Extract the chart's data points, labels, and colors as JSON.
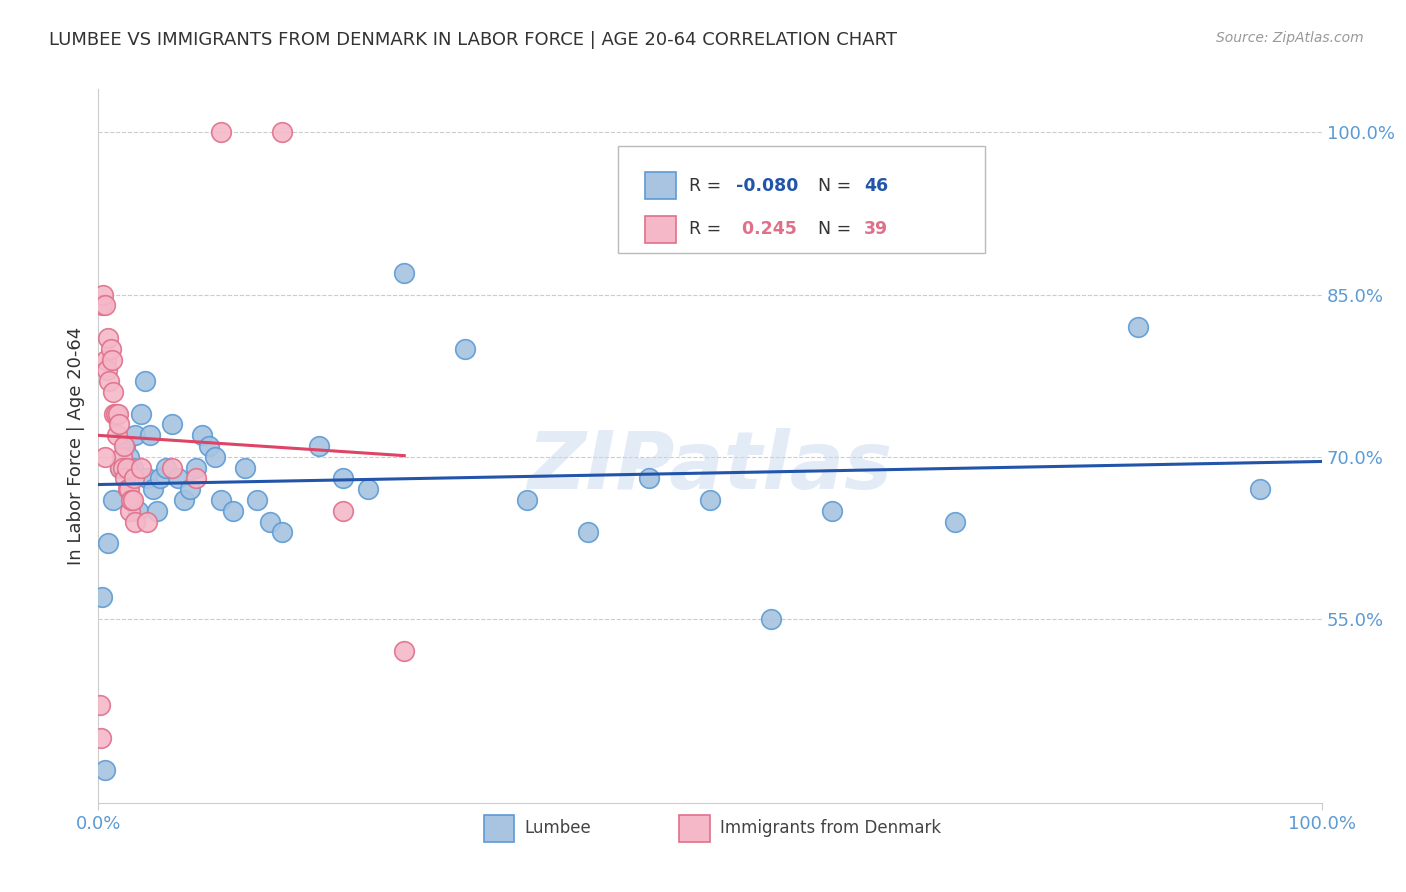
{
  "title": "LUMBEE VS IMMIGRANTS FROM DENMARK IN LABOR FORCE | AGE 20-64 CORRELATION CHART",
  "source": "Source: ZipAtlas.com",
  "ylabel": "In Labor Force | Age 20-64",
  "watermark": "ZIPatlas",
  "lumbee_color": "#a8c4e0",
  "lumbee_edge": "#5b9bd5",
  "denmark_color": "#f4b8c8",
  "denmark_edge": "#e0708a",
  "line_lumbee": "#2255aa",
  "line_denmark": "#dd4466",
  "tick_color": "#5b9bd5",
  "grid_color": "#cccccc",
  "title_color": "#333333",
  "source_color": "#999999",
  "xlim": [
    0.0,
    1.0
  ],
  "ylim": [
    0.38,
    1.04
  ],
  "yticks": [
    0.55,
    0.7,
    0.85,
    1.0
  ],
  "ytick_labels": [
    "55.0%",
    "70.0%",
    "85.0%",
    "100.0%"
  ],
  "lumbee_R": "-0.080",
  "lumbee_N": "46",
  "denmark_R": "0.245",
  "denmark_N": "39",
  "lumbee_x": [
    0.003,
    0.008,
    0.012,
    0.018,
    0.022,
    0.025,
    0.028,
    0.03,
    0.032,
    0.035,
    0.038,
    0.04,
    0.042,
    0.045,
    0.048,
    0.05,
    0.055,
    0.06,
    0.065,
    0.07,
    0.075,
    0.08,
    0.085,
    0.09,
    0.095,
    0.1,
    0.11,
    0.12,
    0.13,
    0.14,
    0.15,
    0.18,
    0.2,
    0.22,
    0.25,
    0.3,
    0.35,
    0.4,
    0.45,
    0.5,
    0.55,
    0.6,
    0.7,
    0.85,
    0.95,
    0.005
  ],
  "lumbee_y": [
    0.57,
    0.62,
    0.66,
    0.69,
    0.71,
    0.7,
    0.69,
    0.72,
    0.65,
    0.74,
    0.77,
    0.68,
    0.72,
    0.67,
    0.65,
    0.68,
    0.69,
    0.73,
    0.68,
    0.66,
    0.67,
    0.69,
    0.72,
    0.71,
    0.7,
    0.66,
    0.65,
    0.69,
    0.66,
    0.64,
    0.63,
    0.71,
    0.68,
    0.67,
    0.87,
    0.8,
    0.66,
    0.63,
    0.68,
    0.66,
    0.55,
    0.65,
    0.64,
    0.82,
    0.67,
    0.41
  ],
  "denmark_x": [
    0.001,
    0.002,
    0.003,
    0.004,
    0.005,
    0.006,
    0.007,
    0.008,
    0.009,
    0.01,
    0.011,
    0.012,
    0.013,
    0.014,
    0.015,
    0.016,
    0.017,
    0.018,
    0.019,
    0.02,
    0.021,
    0.022,
    0.023,
    0.024,
    0.025,
    0.026,
    0.027,
    0.028,
    0.029,
    0.03,
    0.035,
    0.04,
    0.06,
    0.08,
    0.1,
    0.15,
    0.2,
    0.25,
    0.005
  ],
  "denmark_y": [
    0.47,
    0.44,
    0.84,
    0.85,
    0.84,
    0.79,
    0.78,
    0.81,
    0.77,
    0.8,
    0.79,
    0.76,
    0.74,
    0.74,
    0.72,
    0.74,
    0.73,
    0.69,
    0.7,
    0.69,
    0.71,
    0.68,
    0.69,
    0.67,
    0.67,
    0.65,
    0.66,
    0.66,
    0.68,
    0.64,
    0.69,
    0.64,
    0.69,
    0.68,
    1.0,
    1.0,
    0.65,
    0.52,
    0.7
  ]
}
